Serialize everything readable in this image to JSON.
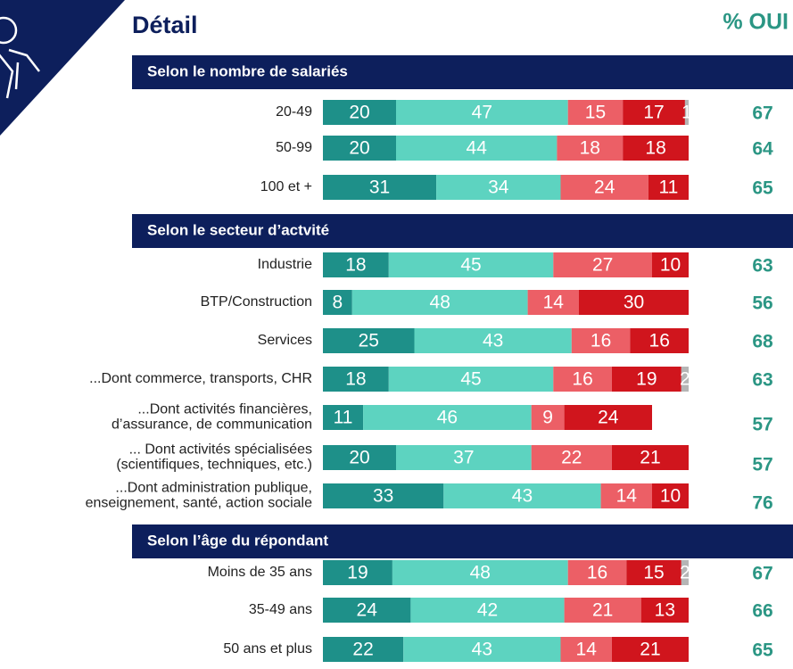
{
  "chart_data": {
    "type": "stacked-bar",
    "title": "Détail",
    "oui_header": "% OUI",
    "xlim": [
      0,
      100
    ],
    "colors": [
      "#1e9089",
      "#5dd3c0",
      "#ec5f66",
      "#d0151d",
      "#b5b5b5"
    ],
    "groups": [
      {
        "title": "Selon le nombre de salariés",
        "rows": [
          {
            "label": [
              "20-49"
            ],
            "values": [
              20,
              47,
              15,
              17,
              1
            ],
            "oui": 67
          },
          {
            "label": [
              "50-99"
            ],
            "values": [
              20,
              44,
              18,
              18
            ],
            "oui": 64
          },
          {
            "label": [
              "100 et +"
            ],
            "values": [
              31,
              34,
              24,
              11
            ],
            "oui": 65
          }
        ]
      },
      {
        "title": "Selon le secteur d’actvité",
        "rows": [
          {
            "label": [
              "Industrie"
            ],
            "values": [
              18,
              45,
              27,
              10
            ],
            "oui": 63
          },
          {
            "label": [
              "BTP/Construction"
            ],
            "values": [
              8,
              48,
              14,
              30
            ],
            "oui": 56
          },
          {
            "label": [
              "Services"
            ],
            "values": [
              25,
              43,
              16,
              16
            ],
            "oui": 68
          },
          {
            "label": [
              "...Dont commerce, transports, CHR"
            ],
            "values": [
              18,
              45,
              16,
              19,
              2
            ],
            "oui": 63
          },
          {
            "label": [
              "...Dont activités financières,",
              "d’assurance, de communication"
            ],
            "values": [
              11,
              46,
              9,
              24
            ],
            "oui": 57
          },
          {
            "label": [
              "... Dont activités spécialisées",
              "(scientifiques, techniques, etc.)"
            ],
            "values": [
              20,
              37,
              22,
              21
            ],
            "oui": 57
          },
          {
            "label": [
              "...Dont administration publique,",
              "enseignement, santé, action sociale"
            ],
            "values": [
              33,
              43,
              14,
              10
            ],
            "oui": 76
          }
        ]
      },
      {
        "title": "Selon l’âge du répondant",
        "rows": [
          {
            "label": [
              "Moins de 35 ans"
            ],
            "values": [
              19,
              48,
              16,
              15,
              2
            ],
            "oui": 67
          },
          {
            "label": [
              "35-49 ans"
            ],
            "values": [
              24,
              42,
              21,
              13
            ],
            "oui": 66
          },
          {
            "label": [
              "50 ans et plus"
            ],
            "values": [
              22,
              43,
              14,
              21
            ],
            "oui": 65
          }
        ]
      }
    ]
  }
}
